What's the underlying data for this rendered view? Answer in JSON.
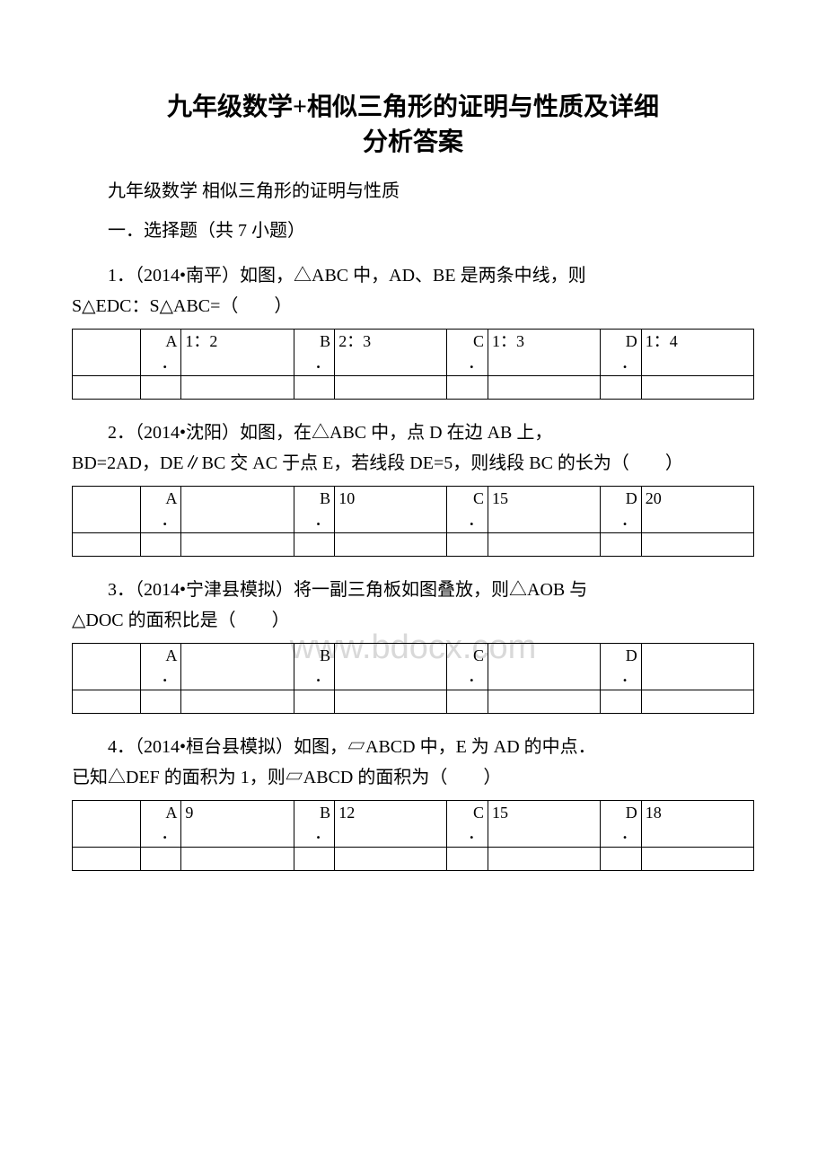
{
  "title_line1": "九年级数学+相似三角形的证明与性质及详细",
  "title_line2": "分析答案",
  "subtitle": "九年级数学 相似三角形的证明与性质",
  "section_heading": "一．选择题（共 7 小题）",
  "watermark": "www.bdocx.com",
  "questions": [
    {
      "first": "1．（2014•南平）如图，△ABC 中，AD、BE 是两条中线，则",
      "wrap": "S△EDC：S△ABC=（　　）",
      "opts": {
        "A": "1：2",
        "B": "2：3",
        "C": "1：3",
        "D": "1：4"
      }
    },
    {
      "first": "2．（2014•沈阳）如图，在△ABC 中，点 D 在边 AB 上，",
      "wrap": "BD=2AD，DE∥BC 交 AC 于点 E，若线段 DE=5，则线段 BC 的长为（　　）",
      "opts": {
        "A": "",
        "B": "10",
        "C": "15",
        "D": "20"
      }
    },
    {
      "first": "3．（2014•宁津县模拟）将一副三角板如图叠放，则△AOB 与",
      "wrap": "△DOC 的面积比是（　　）",
      "opts": {
        "A": "",
        "B": "",
        "C": "",
        "D": ""
      }
    },
    {
      "first": "4．（2014•桓台县模拟）如图，▱ABCD 中，E 为 AD 的中点．",
      "wrap": "已知△DEF 的面积为 1，则▱ABCD 的面积为（　　）",
      "opts": {
        "A": "9",
        "B": "12",
        "C": "15",
        "D": "18"
      }
    }
  ],
  "option_letters": [
    "A",
    "B",
    "C",
    "D"
  ],
  "colors": {
    "text": "#000000",
    "bg": "#ffffff",
    "watermark": "#d9d9d9"
  }
}
